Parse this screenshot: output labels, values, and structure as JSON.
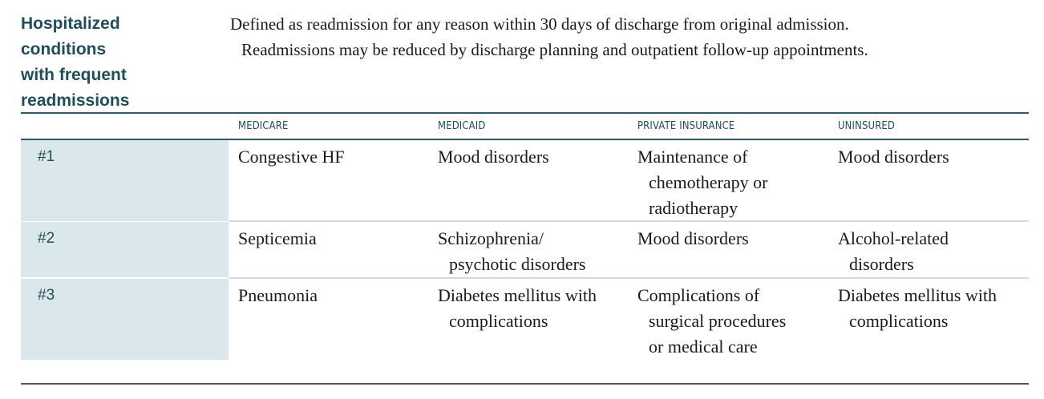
{
  "heading": {
    "lines": [
      "Hospitalized",
      "conditions",
      "with frequent",
      "readmissions"
    ]
  },
  "intro": {
    "line1": "Defined as readmission for any reason within 30 days of discharge from original admission.",
    "line2": "Readmissions may be reduced by discharge planning and outpatient follow-up appointments."
  },
  "columns": [
    "MEDICARE",
    "MEDICAID",
    "PRIVATE INSURANCE",
    "UNINSURED"
  ],
  "rows": [
    {
      "rank": "#1",
      "cells": [
        [
          "Congestive HF"
        ],
        [
          "Mood disorders"
        ],
        [
          "Maintenance of",
          "chemotherapy or",
          "radiotherapy"
        ],
        [
          "Mood disorders"
        ]
      ]
    },
    {
      "rank": "#2",
      "cells": [
        [
          "Septicemia"
        ],
        [
          "Schizophrenia/",
          "psychotic disorders"
        ],
        [
          "Mood disorders"
        ],
        [
          "Alcohol-related",
          "disorders"
        ]
      ]
    },
    {
      "rank": "#3",
      "cells": [
        [
          "Pneumonia"
        ],
        [
          "Diabetes mellitus with",
          "complications"
        ],
        [
          "Complications of",
          "surgical procedures",
          "or medical care"
        ],
        [
          "Diabetes mellitus with",
          "complications"
        ]
      ]
    }
  ],
  "colors": {
    "heading": "#1d4e5c",
    "rank_background": "#dbe8eb",
    "rule": "#2b5a68"
  }
}
